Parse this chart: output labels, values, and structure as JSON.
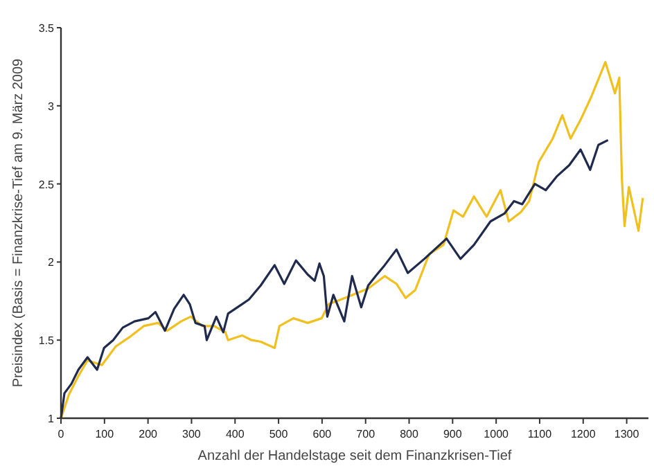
{
  "chart_data": {
    "type": "line",
    "xlabel": "Anzahl der Handelstage seit dem Finanzkrisen-Tief",
    "ylabel": "Preisindex (Basis = Finanzkrise-Tief am 9. März 2009",
    "xlim": [
      0,
      1350
    ],
    "ylim": [
      1,
      3.5
    ],
    "xticks": [
      0,
      100,
      200,
      300,
      400,
      500,
      600,
      700,
      800,
      900,
      1000,
      1100,
      1200,
      1300
    ],
    "yticks": [
      1,
      1.5,
      2,
      2.5,
      3,
      3.5
    ],
    "grid": false,
    "line_style": "solid",
    "series": [
      {
        "color": "#f0c020",
        "x": [
          0,
          18,
          40,
          61,
          94,
          126,
          158,
          190,
          223,
          244,
          276,
          298,
          325,
          352,
          378,
          384,
          416,
          438,
          459,
          491,
          502,
          534,
          567,
          599,
          615,
          653,
          706,
          744,
          771,
          792,
          814,
          846,
          879,
          902,
          924,
          949,
          978,
          1010,
          1029,
          1057,
          1076,
          1098,
          1130,
          1152,
          1171,
          1194,
          1219,
          1251,
          1273,
          1283,
          1289,
          1295,
          1305,
          1327,
          1337
        ],
        "values": [
          1.0,
          1.15,
          1.27,
          1.37,
          1.34,
          1.46,
          1.52,
          1.59,
          1.61,
          1.56,
          1.62,
          1.65,
          1.59,
          1.59,
          1.55,
          1.5,
          1.53,
          1.5,
          1.49,
          1.45,
          1.59,
          1.64,
          1.61,
          1.64,
          1.73,
          1.77,
          1.83,
          1.91,
          1.86,
          1.77,
          1.82,
          2.05,
          2.11,
          2.33,
          2.29,
          2.42,
          2.29,
          2.46,
          2.26,
          2.32,
          2.39,
          2.64,
          2.79,
          2.94,
          2.79,
          2.91,
          3.06,
          3.28,
          3.08,
          3.18,
          2.53,
          2.23,
          2.48,
          2.2,
          2.41
        ]
      },
      {
        "color": "#1f2a4d",
        "x": [
          0,
          8,
          24,
          40,
          61,
          83,
          99,
          120,
          142,
          169,
          201,
          217,
          239,
          260,
          282,
          296,
          309,
          330,
          335,
          357,
          373,
          384,
          416,
          432,
          459,
          491,
          513,
          540,
          567,
          583,
          594,
          604,
          612,
          626,
          651,
          669,
          690,
          706,
          723,
          744,
          771,
          797,
          835,
          886,
          918,
          949,
          987,
          1019,
          1041,
          1060,
          1089,
          1114,
          1140,
          1168,
          1194,
          1216,
          1235,
          1257
        ],
        "values": [
          1.0,
          1.16,
          1.22,
          1.31,
          1.39,
          1.31,
          1.45,
          1.5,
          1.58,
          1.62,
          1.64,
          1.68,
          1.56,
          1.7,
          1.79,
          1.73,
          1.61,
          1.59,
          1.5,
          1.65,
          1.55,
          1.67,
          1.73,
          1.76,
          1.85,
          1.98,
          1.86,
          2.01,
          1.92,
          1.88,
          1.99,
          1.91,
          1.65,
          1.79,
          1.62,
          1.91,
          1.71,
          1.85,
          1.91,
          1.98,
          2.08,
          1.93,
          2.02,
          2.15,
          2.02,
          2.11,
          2.26,
          2.31,
          2.39,
          2.37,
          2.5,
          2.46,
          2.55,
          2.62,
          2.72,
          2.59,
          2.75,
          2.78
        ]
      }
    ]
  }
}
